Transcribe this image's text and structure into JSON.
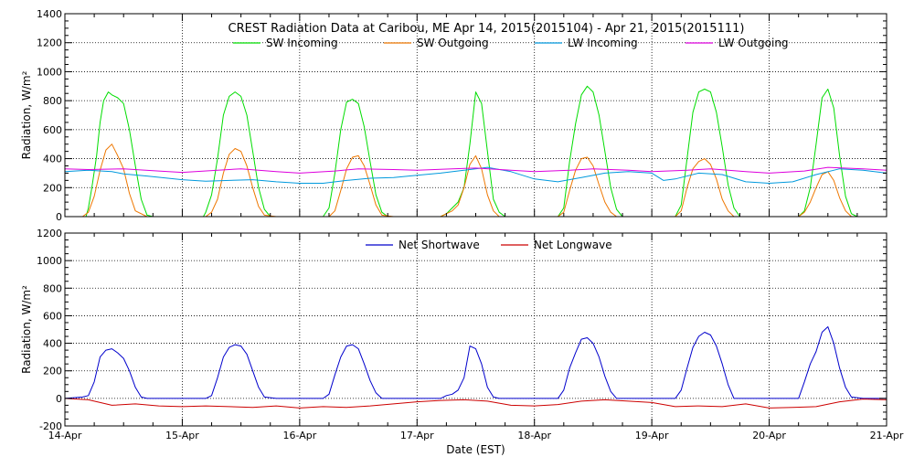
{
  "chart_data": [
    {
      "type": "line",
      "title": "CREST Radiation Data at Caribou, ME   Apr 14, 2015(2015104) - Apr 21, 2015(2015111)",
      "xlabel": "",
      "ylabel": "Radiation, W/m^2",
      "ylim": [
        0,
        1400
      ],
      "yticks": [
        0,
        200,
        400,
        600,
        800,
        1000,
        1200,
        1400
      ],
      "xlim": [
        0,
        7
      ],
      "grid": true,
      "legend_position": "top",
      "series": [
        {
          "name": "SW Incoming",
          "color": "#00dd00",
          "x": [
            0.0,
            0.12,
            0.18,
            0.2,
            0.23,
            0.27,
            0.3,
            0.33,
            0.37,
            0.4,
            0.45,
            0.5,
            0.55,
            0.6,
            0.65,
            0.7,
            0.75,
            0.8,
            1.0,
            1.18,
            1.2,
            1.25,
            1.3,
            1.35,
            1.4,
            1.45,
            1.5,
            1.55,
            1.6,
            1.65,
            1.7,
            1.75,
            1.8,
            2.0,
            2.2,
            2.25,
            2.3,
            2.35,
            2.4,
            2.45,
            2.5,
            2.55,
            2.6,
            2.65,
            2.7,
            2.75,
            2.8,
            3.0,
            3.2,
            3.25,
            3.3,
            3.35,
            3.4,
            3.45,
            3.5,
            3.55,
            3.6,
            3.65,
            3.7,
            3.75,
            3.8,
            4.0,
            4.2,
            4.25,
            4.3,
            4.35,
            4.4,
            4.45,
            4.5,
            4.55,
            4.6,
            4.65,
            4.7,
            4.75,
            4.8,
            5.0,
            5.2,
            5.25,
            5.3,
            5.35,
            5.4,
            5.45,
            5.5,
            5.55,
            5.6,
            5.65,
            5.7,
            5.75,
            5.8,
            6.0,
            6.2,
            6.25,
            6.3,
            6.35,
            6.4,
            6.45,
            6.5,
            6.55,
            6.6,
            6.65,
            6.7,
            6.75,
            6.8,
            7.0
          ],
          "values": [
            0,
            0,
            0,
            60,
            200,
            420,
            650,
            800,
            860,
            840,
            820,
            780,
            600,
            350,
            120,
            10,
            0,
            0,
            0,
            0,
            30,
            150,
            400,
            700,
            830,
            860,
            830,
            700,
            450,
            200,
            50,
            0,
            0,
            0,
            0,
            60,
            300,
            600,
            790,
            810,
            780,
            620,
            380,
            150,
            30,
            0,
            0,
            0,
            0,
            20,
            60,
            100,
            200,
            500,
            860,
            780,
            450,
            120,
            30,
            0,
            0,
            0,
            0,
            60,
            380,
            640,
            840,
            900,
            860,
            700,
            450,
            200,
            50,
            0,
            0,
            0,
            0,
            80,
            400,
            720,
            860,
            880,
            860,
            720,
            480,
            220,
            60,
            0,
            0,
            0,
            0,
            0,
            40,
            200,
            500,
            820,
            880,
            750,
            420,
            140,
            20,
            0,
            0,
            0
          ]
        },
        {
          "name": "SW Outgoing",
          "color": "#ee7700",
          "x": [
            0.0,
            0.15,
            0.2,
            0.25,
            0.3,
            0.35,
            0.4,
            0.45,
            0.5,
            0.55,
            0.6,
            0.7,
            0.8,
            1.0,
            1.2,
            1.25,
            1.3,
            1.35,
            1.4,
            1.45,
            1.5,
            1.55,
            1.6,
            1.65,
            1.7,
            1.8,
            2.0,
            2.25,
            2.3,
            2.35,
            2.4,
            2.45,
            2.5,
            2.55,
            2.6,
            2.65,
            2.7,
            2.8,
            3.0,
            3.2,
            3.25,
            3.3,
            3.35,
            3.4,
            3.45,
            3.5,
            3.55,
            3.6,
            3.65,
            3.7,
            3.8,
            4.0,
            4.2,
            4.25,
            4.3,
            4.35,
            4.4,
            4.45,
            4.5,
            4.55,
            4.6,
            4.65,
            4.7,
            4.8,
            5.0,
            5.2,
            5.25,
            5.3,
            5.35,
            5.4,
            5.45,
            5.5,
            5.55,
            5.6,
            5.65,
            5.7,
            5.8,
            6.0,
            6.2,
            6.25,
            6.3,
            6.35,
            6.4,
            6.45,
            6.5,
            6.55,
            6.6,
            6.65,
            6.7,
            6.8,
            7.0
          ],
          "values": [
            0,
            0,
            30,
            140,
            320,
            460,
            500,
            420,
            330,
            160,
            40,
            0,
            0,
            0,
            0,
            30,
            120,
            300,
            430,
            470,
            450,
            350,
            200,
            70,
            10,
            0,
            0,
            0,
            40,
            180,
            330,
            410,
            420,
            350,
            220,
            80,
            10,
            0,
            0,
            0,
            20,
            40,
            80,
            200,
            360,
            420,
            330,
            150,
            40,
            0,
            0,
            0,
            0,
            30,
            180,
            320,
            400,
            410,
            350,
            220,
            100,
            30,
            0,
            0,
            0,
            0,
            40,
            200,
            330,
            380,
            400,
            360,
            260,
            120,
            40,
            0,
            0,
            0,
            0,
            0,
            30,
            100,
            200,
            290,
            310,
            250,
            130,
            40,
            0,
            0,
            0
          ]
        },
        {
          "name": "LW Incoming",
          "color": "#0099dd",
          "x": [
            0.0,
            0.2,
            0.4,
            0.5,
            0.7,
            1.0,
            1.2,
            1.4,
            1.6,
            1.8,
            2.0,
            2.2,
            2.4,
            2.6,
            2.8,
            3.0,
            3.2,
            3.4,
            3.6,
            3.8,
            4.0,
            4.2,
            4.4,
            4.6,
            4.8,
            5.0,
            5.1,
            5.2,
            5.4,
            5.6,
            5.8,
            6.0,
            6.2,
            6.4,
            6.6,
            6.8,
            7.0
          ],
          "values": [
            310,
            320,
            310,
            295,
            280,
            255,
            245,
            250,
            255,
            240,
            230,
            230,
            250,
            265,
            270,
            285,
            300,
            320,
            340,
            310,
            260,
            240,
            270,
            300,
            310,
            300,
            250,
            260,
            300,
            290,
            240,
            230,
            240,
            290,
            330,
            320,
            300
          ]
        },
        {
          "name": "LW Outgoing",
          "color": "#dd00dd",
          "x": [
            0.0,
            0.2,
            0.5,
            0.8,
            1.0,
            1.3,
            1.5,
            1.8,
            2.0,
            2.3,
            2.5,
            2.8,
            3.0,
            3.3,
            3.5,
            3.8,
            4.0,
            4.3,
            4.5,
            4.8,
            5.0,
            5.3,
            5.5,
            5.8,
            6.0,
            6.3,
            6.5,
            6.8,
            7.0
          ],
          "values": [
            330,
            325,
            330,
            315,
            305,
            320,
            330,
            310,
            300,
            315,
            330,
            325,
            320,
            330,
            335,
            320,
            310,
            320,
            330,
            320,
            310,
            320,
            330,
            310,
            300,
            315,
            340,
            330,
            320
          ]
        }
      ]
    },
    {
      "type": "line",
      "title": "",
      "xlabel": "Date (EST)",
      "ylabel": "Radiation, W/m^2",
      "ylim": [
        -200,
        1200
      ],
      "yticks": [
        -200,
        0,
        200,
        400,
        600,
        800,
        1000,
        1200
      ],
      "xlim": [
        0,
        7
      ],
      "categories": [
        "14-Apr",
        "15-Apr",
        "16-Apr",
        "17-Apr",
        "18-Apr",
        "19-Apr",
        "20-Apr",
        "21-Apr"
      ],
      "grid": true,
      "legend_position": "top",
      "series": [
        {
          "name": "Net Shortwave",
          "color": "#0000cc",
          "x": [
            0.0,
            0.15,
            0.2,
            0.25,
            0.3,
            0.35,
            0.4,
            0.45,
            0.5,
            0.55,
            0.6,
            0.65,
            0.7,
            0.8,
            1.0,
            1.2,
            1.25,
            1.3,
            1.35,
            1.4,
            1.45,
            1.5,
            1.55,
            1.6,
            1.65,
            1.7,
            1.8,
            2.0,
            2.2,
            2.25,
            2.3,
            2.35,
            2.4,
            2.45,
            2.5,
            2.55,
            2.6,
            2.65,
            2.7,
            2.8,
            3.0,
            3.2,
            3.25,
            3.3,
            3.35,
            3.4,
            3.45,
            3.5,
            3.55,
            3.6,
            3.65,
            3.7,
            3.8,
            4.0,
            4.2,
            4.25,
            4.3,
            4.35,
            4.4,
            4.45,
            4.5,
            4.55,
            4.6,
            4.65,
            4.7,
            4.8,
            5.0,
            5.2,
            5.25,
            5.3,
            5.35,
            5.4,
            5.45,
            5.5,
            5.55,
            5.6,
            5.65,
            5.7,
            5.8,
            6.0,
            6.2,
            6.25,
            6.3,
            6.35,
            6.4,
            6.45,
            6.5,
            6.55,
            6.6,
            6.65,
            6.7,
            6.8,
            7.0
          ],
          "values": [
            0,
            10,
            20,
            120,
            300,
            350,
            360,
            330,
            290,
            200,
            80,
            10,
            0,
            0,
            0,
            0,
            20,
            150,
            300,
            370,
            390,
            380,
            320,
            200,
            80,
            10,
            0,
            0,
            0,
            30,
            170,
            300,
            380,
            390,
            360,
            250,
            130,
            40,
            0,
            0,
            0,
            0,
            20,
            30,
            60,
            150,
            380,
            360,
            250,
            80,
            10,
            0,
            0,
            0,
            0,
            60,
            220,
            330,
            430,
            440,
            400,
            300,
            160,
            50,
            0,
            0,
            0,
            0,
            60,
            220,
            370,
            450,
            480,
            460,
            380,
            250,
            100,
            0,
            0,
            0,
            0,
            0,
            120,
            250,
            340,
            480,
            520,
            400,
            220,
            80,
            10,
            0,
            0
          ]
        },
        {
          "name": "Net Longwave",
          "color": "#cc0000",
          "x": [
            0.0,
            0.2,
            0.4,
            0.6,
            0.8,
            1.0,
            1.2,
            1.4,
            1.6,
            1.8,
            2.0,
            2.2,
            2.4,
            2.6,
            2.8,
            3.0,
            3.2,
            3.4,
            3.6,
            3.8,
            4.0,
            4.2,
            4.4,
            4.6,
            4.8,
            5.0,
            5.2,
            5.4,
            5.6,
            5.8,
            6.0,
            6.2,
            6.4,
            6.6,
            6.8,
            7.0
          ],
          "values": [
            0,
            -10,
            -50,
            -40,
            -55,
            -60,
            -55,
            -60,
            -65,
            -55,
            -70,
            -60,
            -65,
            -55,
            -40,
            -25,
            -15,
            -10,
            -20,
            -50,
            -55,
            -45,
            -20,
            -10,
            -20,
            -30,
            -60,
            -55,
            -60,
            -40,
            -70,
            -65,
            -60,
            -25,
            -5,
            -10
          ]
        }
      ]
    }
  ]
}
